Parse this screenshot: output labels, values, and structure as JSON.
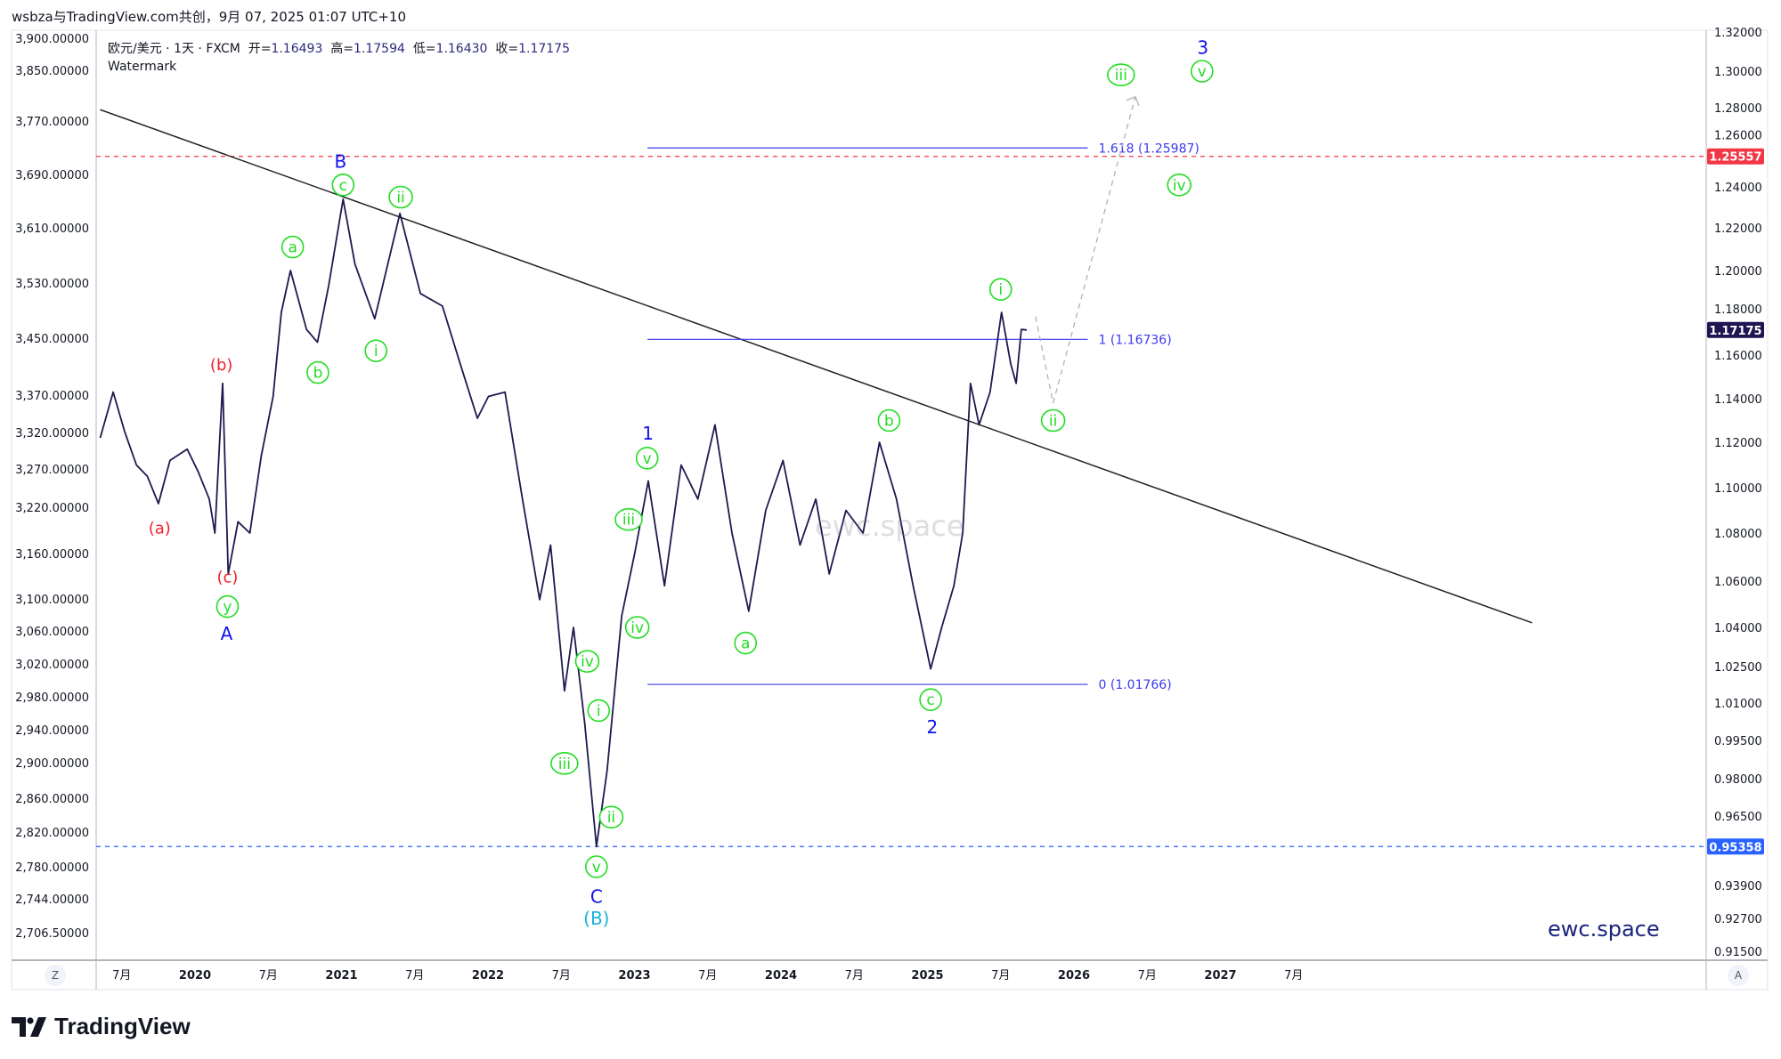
{
  "header": {
    "title": "wsbza与TradingView.com共创，9月 07, 2025 01:07 UTC+10"
  },
  "legend": {
    "symbol": "欧元/美元 · 1天 · FXCM",
    "open_label": "开=",
    "open": "1.16493",
    "high_label": "高=",
    "high": "1.17594",
    "low_label": "低=",
    "low": "1.16430",
    "close_label": "收=",
    "close": "1.17175",
    "watermark": "Watermark"
  },
  "watermarks": {
    "center": "ewc.space",
    "bottom_right": "ewc.space"
  },
  "footer": {
    "brand": "TradingView"
  },
  "axis_buttons": {
    "left": "Z",
    "right": "A"
  },
  "colors": {
    "price": "#1c1a4f",
    "green": "#22dd22",
    "blue": "#1010f0",
    "red": "#f0202a",
    "cyan": "#1ab0d8",
    "fib": "#3a3af0",
    "red_line": "#f23645",
    "blue_line": "#2962ff",
    "last_price_bg": "#1e1650"
  },
  "chart_data": {
    "type": "line",
    "symbol": "EUR/USD",
    "x_ticks": [
      {
        "date": "2019-07-01",
        "label": "7月"
      },
      {
        "date": "2020-01-01",
        "label": "2020"
      },
      {
        "date": "2020-07-01",
        "label": "7月"
      },
      {
        "date": "2021-01-01",
        "label": "2021"
      },
      {
        "date": "2021-07-01",
        "label": "7月"
      },
      {
        "date": "2022-01-01",
        "label": "2022"
      },
      {
        "date": "2022-07-01",
        "label": "7月"
      },
      {
        "date": "2023-01-01",
        "label": "2023"
      },
      {
        "date": "2023-07-01",
        "label": "7月"
      },
      {
        "date": "2024-01-01",
        "label": "2024"
      },
      {
        "date": "2024-07-01",
        "label": "7月"
      },
      {
        "date": "2025-01-01",
        "label": "2025"
      },
      {
        "date": "2025-07-01",
        "label": "7月"
      },
      {
        "date": "2026-01-01",
        "label": "2026"
      },
      {
        "date": "2026-07-01",
        "label": "7月"
      },
      {
        "date": "2027-01-01",
        "label": "2027"
      },
      {
        "date": "2027-07-01",
        "label": "7月"
      }
    ],
    "right_ticks": [
      "1.32000",
      "1.30000",
      "1.28000",
      "1.26000",
      "1.24000",
      "1.22000",
      "1.20000",
      "1.18000",
      "1.16000",
      "1.14000",
      "1.12000",
      "1.10000",
      "1.08000",
      "1.06000",
      "1.04000",
      "1.02500",
      "1.01000",
      "0.99500",
      "0.98000",
      "0.96500",
      "0.93900",
      "0.92700",
      "0.91500"
    ],
    "left_ticks": [
      "3,900.00000",
      "3,850.00000",
      "3,770.00000",
      "3,690.00000",
      "3,610.00000",
      "3,530.00000",
      "3,450.00000",
      "3,370.00000",
      "3,320.00000",
      "3,270.00000",
      "3,220.00000",
      "3,160.00000",
      "3,100.00000",
      "3,060.00000",
      "3,020.00000",
      "2,980.00000",
      "2,940.00000",
      "2,900.00000",
      "2,860.00000",
      "2,820.00000",
      "2,780.00000",
      "2,744.00000",
      "2,706.50000"
    ],
    "price_badges": [
      {
        "value": "1.25557",
        "price": 1.25557,
        "kind": "red"
      },
      {
        "value": "1.17175",
        "price": 1.17175,
        "kind": "last"
      },
      {
        "value": "0.95358",
        "price": 0.95358,
        "kind": "blue"
      }
    ],
    "series": [
      [
        "2019-05-08",
        1.122
      ],
      [
        "2019-06-10",
        1.143
      ],
      [
        "2019-07-08",
        1.125
      ],
      [
        "2019-08-07",
        1.11
      ],
      [
        "2019-09-04",
        1.105
      ],
      [
        "2019-10-01",
        1.093
      ],
      [
        "2019-10-30",
        1.112
      ],
      [
        "2019-12-12",
        1.117
      ],
      [
        "2020-01-09",
        1.107
      ],
      [
        "2020-02-06",
        1.095
      ],
      [
        "2020-02-20",
        1.08
      ],
      [
        "2020-03-09",
        1.147
      ],
      [
        "2020-03-23",
        1.063
      ],
      [
        "2020-04-17",
        1.085
      ],
      [
        "2020-05-16",
        1.08
      ],
      [
        "2020-06-14",
        1.114
      ],
      [
        "2020-07-13",
        1.141
      ],
      [
        "2020-08-03",
        1.18
      ],
      [
        "2020-08-26",
        1.2
      ],
      [
        "2020-10-05",
        1.172
      ],
      [
        "2020-11-02",
        1.166
      ],
      [
        "2020-11-30",
        1.193
      ],
      [
        "2021-01-05",
        1.234
      ],
      [
        "2021-02-04",
        1.203
      ],
      [
        "2021-03-23",
        1.177
      ],
      [
        "2021-05-25",
        1.227
      ],
      [
        "2021-07-15",
        1.189
      ],
      [
        "2021-09-09",
        1.183
      ],
      [
        "2021-10-23",
        1.156
      ],
      [
        "2021-12-05",
        1.131
      ],
      [
        "2022-01-02",
        1.141
      ],
      [
        "2022-02-13",
        1.143
      ],
      [
        "2022-03-26",
        1.095
      ],
      [
        "2022-05-08",
        1.052
      ],
      [
        "2022-06-05",
        1.075
      ],
      [
        "2022-07-09",
        1.015
      ],
      [
        "2022-08-01",
        1.04
      ],
      [
        "2022-08-29",
        1.002
      ],
      [
        "2022-09-28",
        0.9536
      ],
      [
        "2022-10-24",
        0.983
      ],
      [
        "2022-11-30",
        1.045
      ],
      [
        "2023-01-02",
        1.072
      ],
      [
        "2023-02-05",
        1.103
      ],
      [
        "2023-03-15",
        1.058
      ],
      [
        "2023-04-26",
        1.11
      ],
      [
        "2023-06-07",
        1.095
      ],
      [
        "2023-07-19",
        1.128
      ],
      [
        "2023-08-31",
        1.08
      ],
      [
        "2023-10-12",
        1.047
      ],
      [
        "2023-11-24",
        1.09
      ],
      [
        "2024-01-06",
        1.112
      ],
      [
        "2024-02-18",
        1.075
      ],
      [
        "2024-03-27",
        1.095
      ],
      [
        "2024-04-30",
        1.063
      ],
      [
        "2024-06-11",
        1.09
      ],
      [
        "2024-07-23",
        1.08
      ],
      [
        "2024-09-03",
        1.12
      ],
      [
        "2024-10-15",
        1.095
      ],
      [
        "2024-11-26",
        1.058
      ],
      [
        "2025-01-09",
        1.024
      ],
      [
        "2025-02-06",
        1.04
      ],
      [
        "2025-03-06",
        1.058
      ],
      [
        "2025-03-28",
        1.08
      ],
      [
        "2025-04-17",
        1.147
      ],
      [
        "2025-05-08",
        1.128
      ],
      [
        "2025-06-05",
        1.143
      ],
      [
        "2025-07-03",
        1.18
      ],
      [
        "2025-07-26",
        1.156
      ],
      [
        "2025-08-09",
        1.147
      ],
      [
        "2025-08-22",
        1.172
      ],
      [
        "2025-09-05",
        1.17175
      ]
    ],
    "trendline": [
      [
        "2019-05-08",
        1.279
      ],
      [
        "2029-02-17",
        1.042
      ]
    ],
    "projection": [
      [
        "2025-09-27",
        1.178
      ],
      [
        "2025-11-10",
        1.138
      ],
      [
        "2026-06-02",
        1.286
      ]
    ],
    "fib_levels": [
      {
        "label": "1.618 (1.25987)",
        "price": 1.25987
      },
      {
        "label": "1 (1.16736)",
        "price": 1.16736
      },
      {
        "label": "0 (1.01766)",
        "price": 1.01766
      }
    ],
    "fib_range": [
      "2023-02-03",
      "2026-02-05"
    ],
    "wave_labels": [
      {
        "text": "(a)",
        "style": "red",
        "date": "2019-10-04",
        "price": 1.0825
      },
      {
        "text": "(b)",
        "style": "red",
        "date": "2020-03-06",
        "price": 1.156
      },
      {
        "text": "(c)",
        "style": "red",
        "date": "2020-03-21",
        "price": 1.062
      },
      {
        "text": "y",
        "style": "circle",
        "date": "2020-03-21",
        "price": 1.049
      },
      {
        "text": "A",
        "style": "blue",
        "date": "2020-03-19",
        "price": 1.039
      },
      {
        "text": "a",
        "style": "circle",
        "date": "2020-09-01",
        "price": 1.211
      },
      {
        "text": "b",
        "style": "circle",
        "date": "2020-11-03",
        "price": 1.152
      },
      {
        "text": "B",
        "style": "blue",
        "date": "2020-12-29",
        "price": 1.253
      },
      {
        "text": "c",
        "style": "circle",
        "date": "2021-01-05",
        "price": 1.241
      },
      {
        "text": "ii",
        "style": "circle",
        "date": "2021-05-27",
        "price": 1.235
      },
      {
        "text": "i",
        "style": "circle",
        "date": "2021-03-26",
        "price": 1.162
      },
      {
        "text": "iv",
        "style": "circle",
        "date": "2022-09-05",
        "price": 1.027
      },
      {
        "text": "iii",
        "style": "circle",
        "date": "2022-07-09",
        "price": 0.986
      },
      {
        "text": "i",
        "style": "circle",
        "date": "2022-10-03",
        "price": 1.007
      },
      {
        "text": "ii",
        "style": "circle",
        "date": "2022-11-04",
        "price": 0.9646
      },
      {
        "text": "v",
        "style": "circle",
        "date": "2022-09-28",
        "price": 0.946
      },
      {
        "text": "C",
        "style": "blue",
        "date": "2022-09-28",
        "price": 0.935
      },
      {
        "text": "(B)",
        "style": "cyan",
        "date": "2022-09-28",
        "price": 0.927
      },
      {
        "text": "1",
        "style": "blue",
        "date": "2023-02-04",
        "price": 1.124
      },
      {
        "text": "v",
        "style": "circle",
        "date": "2023-02-02",
        "price": 1.113
      },
      {
        "text": "iii",
        "style": "circle",
        "date": "2022-12-17",
        "price": 1.086
      },
      {
        "text": "iv",
        "style": "circle",
        "date": "2023-01-08",
        "price": 1.04
      },
      {
        "text": "a",
        "style": "circle",
        "date": "2023-10-04",
        "price": 1.034
      },
      {
        "text": "b",
        "style": "circle",
        "date": "2024-09-27",
        "price": 1.13
      },
      {
        "text": "c",
        "style": "circle",
        "date": "2025-01-09",
        "price": 1.0114
      },
      {
        "text": "2",
        "style": "blue",
        "date": "2025-01-13",
        "price": 1.0003
      },
      {
        "text": "i",
        "style": "circle",
        "date": "2025-07-01",
        "price": 1.191
      },
      {
        "text": "ii",
        "style": "circle",
        "date": "2025-11-10",
        "price": 1.13
      },
      {
        "text": "iii",
        "style": "circle",
        "date": "2026-04-27",
        "price": 1.298
      },
      {
        "text": "v",
        "style": "circle",
        "date": "2026-11-16",
        "price": 1.3
      },
      {
        "text": "3",
        "style": "blue",
        "date": "2026-11-18",
        "price": 1.312
      },
      {
        "text": "iv",
        "style": "circle",
        "date": "2026-09-20",
        "price": 1.241
      }
    ]
  }
}
